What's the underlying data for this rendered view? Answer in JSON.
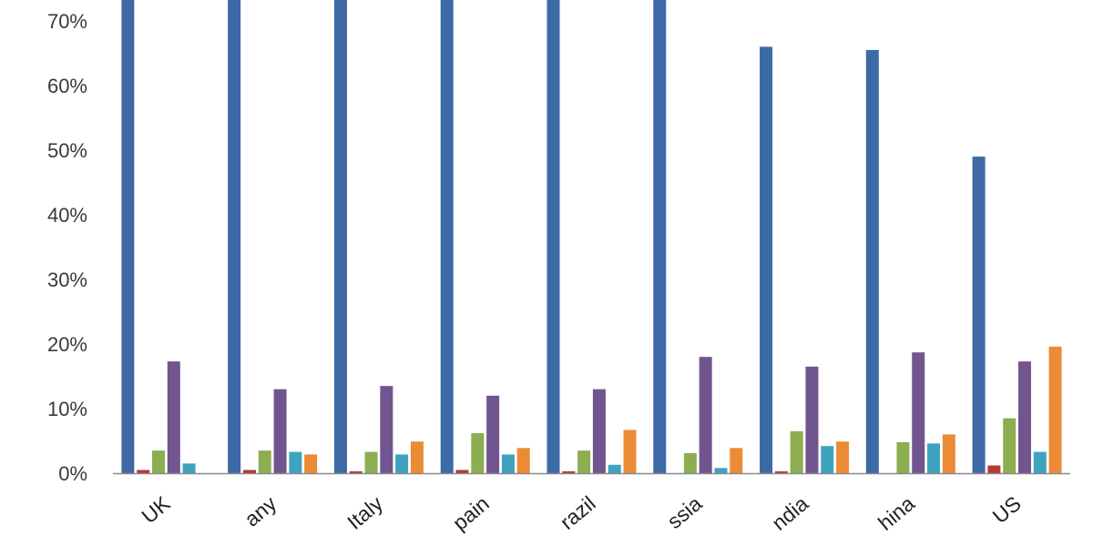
{
  "chart_data": {
    "type": "bar",
    "title": "",
    "xlabel": "",
    "ylabel": "",
    "ylim": [
      0,
      0.74
    ],
    "y_ticks": [
      "0%",
      "10%",
      "20%",
      "30%",
      "40%",
      "50%",
      "60%",
      "70%"
    ],
    "y_tick_values": [
      0,
      0.1,
      0.2,
      0.3,
      0.4,
      0.5,
      0.6,
      0.7
    ],
    "categories": [
      "UK",
      "any",
      "Italy",
      "pain",
      "razil",
      "ssia",
      "ndia",
      "hina",
      "US"
    ],
    "grid": false,
    "legend": "none",
    "series": [
      {
        "color": "#3d6aa6",
        "values": [
          0.76,
          0.76,
          0.76,
          0.76,
          0.76,
          0.76,
          0.66,
          0.655,
          0.49
        ]
      },
      {
        "color": "#b53a37",
        "values": [
          0.005,
          0.005,
          0.003,
          0.005,
          0.003,
          0.0,
          0.003,
          0.0,
          0.012
        ]
      },
      {
        "color": "#8cae50",
        "values": [
          0.035,
          0.035,
          0.033,
          0.062,
          0.035,
          0.031,
          0.065,
          0.048,
          0.085
        ]
      },
      {
        "color": "#71558f",
        "values": [
          0.173,
          0.13,
          0.135,
          0.12,
          0.13,
          0.18,
          0.165,
          0.187,
          0.173
        ]
      },
      {
        "color": "#3ea3be",
        "values": [
          0.015,
          0.033,
          0.029,
          0.029,
          0.013,
          0.008,
          0.042,
          0.046,
          0.033
        ]
      },
      {
        "color": "#ec8b36",
        "values": [
          0.0,
          0.029,
          0.049,
          0.039,
          0.067,
          0.039,
          0.049,
          0.06,
          0.196
        ]
      }
    ]
  }
}
